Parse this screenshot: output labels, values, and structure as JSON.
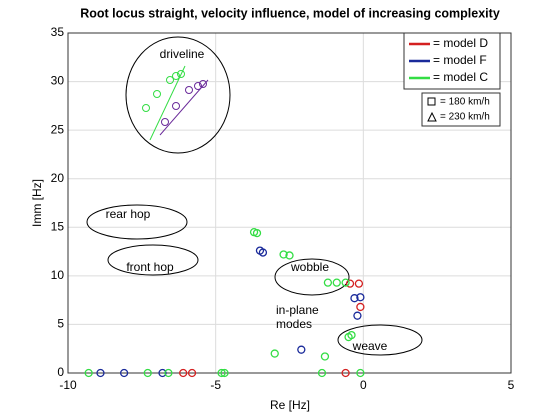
{
  "chart_data": {
    "type": "scatter",
    "title": "Root locus straight, velocity influence, model of increasing complexity",
    "xlabel": "Re [Hz]",
    "ylabel": "Imm [Hz]",
    "xlim": [
      -10,
      5
    ],
    "xticks": [
      -10,
      -5,
      0,
      5
    ],
    "ylim": [
      0,
      35
    ],
    "yticks": [
      0,
      5,
      10,
      15,
      20,
      25,
      30,
      35
    ],
    "grid": true,
    "legend": "upper right",
    "series": [
      {
        "name": "= model D",
        "color": "#d42020",
        "x": [
          -0.45,
          -0.15,
          -0.1,
          -0.6,
          -6.1,
          -5.8
        ],
        "y": [
          9.2,
          9.2,
          6.8,
          0,
          0,
          0
        ]
      },
      {
        "name": "= model F",
        "color": "#1a2a9a",
        "x": [
          -3.5,
          -3.4,
          -2.1,
          -0.3,
          -0.1,
          -0.2,
          -8.9,
          -8.1,
          -6.8
        ],
        "y": [
          12.6,
          12.4,
          2.4,
          7.7,
          7.8,
          5.9,
          0,
          0,
          0
        ]
      },
      {
        "name": "= model C",
        "color": "#33dd44",
        "x": [
          -3.7,
          -3.6,
          -2.7,
          -2.5,
          -1.2,
          -0.9,
          -0.6,
          -0.5,
          -0.4,
          -3,
          -1.3,
          -4.8,
          -4.7,
          -1.4,
          -0.1,
          -9.3,
          -7.3,
          -6.6
        ],
        "y": [
          14.5,
          14.4,
          12.2,
          12.1,
          9.3,
          9.3,
          9.3,
          3.7,
          3.9,
          2,
          1.7,
          0,
          0,
          0,
          0,
          0,
          0,
          0
        ]
      }
    ],
    "marker_legend": [
      "= 180 km/h",
      "= 230 km/h"
    ],
    "annotations": [
      "driveline",
      "rear hop",
      "front hop",
      "wobble",
      "in-plane modes",
      "weave"
    ]
  }
}
